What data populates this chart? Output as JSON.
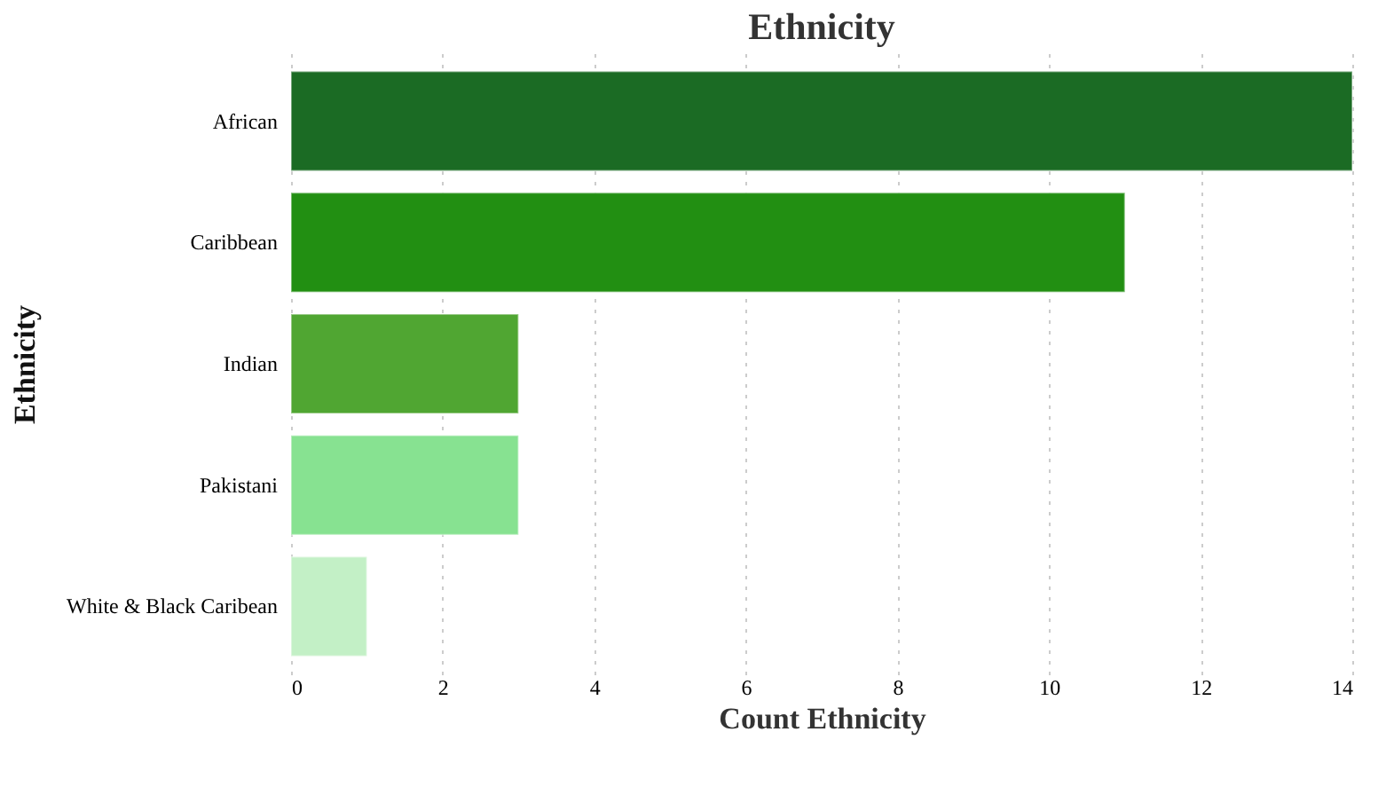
{
  "chart_data": {
    "type": "bar",
    "orientation": "horizontal",
    "title": "Ethnicity",
    "xlabel": "Count Ethnicity",
    "ylabel": "Ethnicity",
    "categories": [
      "African",
      "Caribbean",
      "Indian",
      "Pakistani",
      "White & Black Caribean"
    ],
    "values": [
      14,
      11,
      3,
      3,
      1
    ],
    "colors": [
      "#1b6b24",
      "#228f12",
      "#50a632",
      "#87e291",
      "#c3f0c6"
    ],
    "xlim": [
      0,
      14
    ],
    "xticks": [
      0,
      2,
      4,
      6,
      8,
      10,
      12,
      14
    ],
    "grid": "x",
    "legend": false
  }
}
